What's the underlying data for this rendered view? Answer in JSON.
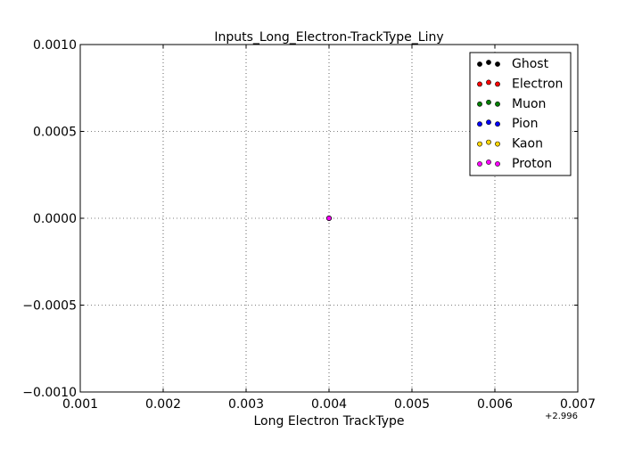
{
  "chart_data": {
    "type": "scatter",
    "title": "Inputs_Long_Electron-TrackType_Liny",
    "xlabel": "Long Electron TrackType",
    "ylabel": "",
    "x_offset_label": "+2.996",
    "xlim": [
      0.001,
      0.007
    ],
    "ylim": [
      -0.001,
      0.001
    ],
    "x_ticks": [
      0.001,
      0.002,
      0.003,
      0.004,
      0.005,
      0.006,
      0.007
    ],
    "x_tick_labels": [
      "0.001",
      "0.002",
      "0.003",
      "0.004",
      "0.005",
      "0.006",
      "0.007"
    ],
    "y_ticks": [
      -0.001,
      -0.0005,
      0.0,
      0.0005,
      0.001
    ],
    "y_tick_labels": [
      "−0.0010",
      "−0.0005",
      "0.0000",
      "0.0005",
      "0.0010"
    ],
    "grid": true,
    "legend_position": "top-right",
    "series": [
      {
        "name": "Ghost",
        "color": "#000000",
        "points": [
          [
            0.004,
            0.0
          ]
        ]
      },
      {
        "name": "Electron",
        "color": "#ff0000",
        "points": [
          [
            0.004,
            0.0
          ]
        ]
      },
      {
        "name": "Muon",
        "color": "#008000",
        "points": [
          [
            0.004,
            0.0
          ]
        ]
      },
      {
        "name": "Pion",
        "color": "#0000ff",
        "points": [
          [
            0.004,
            0.0
          ]
        ]
      },
      {
        "name": "Kaon",
        "color": "#ffd700",
        "points": [
          [
            0.004,
            0.0
          ]
        ]
      },
      {
        "name": "Proton",
        "color": "#ff00ff",
        "points": [
          [
            0.004,
            0.0
          ]
        ]
      }
    ]
  }
}
